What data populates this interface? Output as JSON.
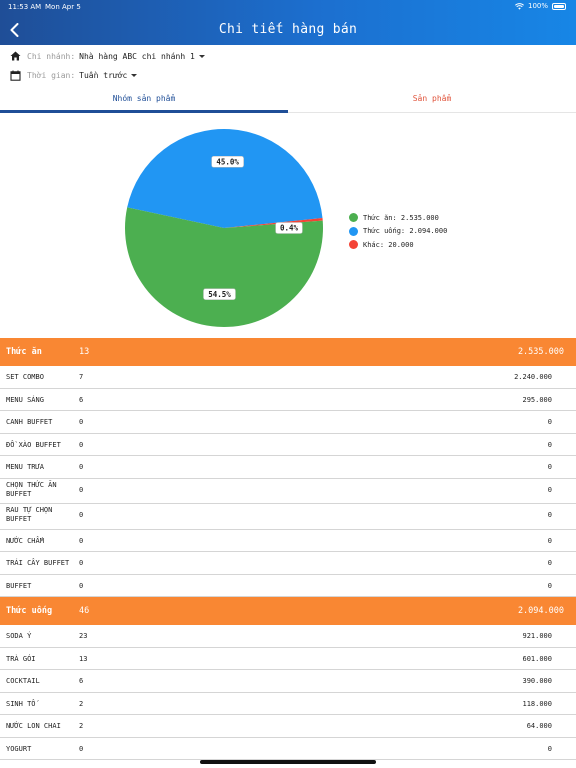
{
  "status_bar": {
    "time": "11:53 AM",
    "date": "Mon Apr 5",
    "battery": "100%"
  },
  "header": {
    "title": "Chi tiết hàng bán"
  },
  "filters": {
    "branch_label": "Chi nhánh:",
    "branch_value": "Nhà hàng ABC chi nhánh 1",
    "time_label": "Thời gian:",
    "time_value": "Tuần trước"
  },
  "tabs": [
    {
      "label": "Nhóm sản phẩm",
      "active": true
    },
    {
      "label": "Sản phẩm",
      "active": false
    }
  ],
  "chart_data": {
    "type": "pie",
    "slices": [
      {
        "label": "Thức ăn",
        "value": 2535000,
        "display": "2.535.000",
        "percent": "54.5%",
        "color": "#4caf50"
      },
      {
        "label": "Thức uống",
        "value": 2094000,
        "display": "2.094.000",
        "percent": "45.0%",
        "color": "#2196f3"
      },
      {
        "label": "Khác",
        "value": 20000,
        "display": "20.000",
        "percent": "0.4%",
        "color": "#f44336"
      }
    ],
    "legend_position": "right"
  },
  "legend": [
    {
      "text": "Thức ăn: 2.535.000",
      "color": "#4caf50"
    },
    {
      "text": "Thức uống: 2.094.000",
      "color": "#2196f3"
    },
    {
      "text": "Khác: 20.000",
      "color": "#f44336"
    }
  ],
  "groups": [
    {
      "name": "Thức ăn",
      "qty": "13",
      "amount": "2.535.000",
      "items": [
        {
          "name": "SET COMBO",
          "qty": "7",
          "amount": "2.240.000"
        },
        {
          "name": "MENU SÁNG",
          "qty": "6",
          "amount": "295.000"
        },
        {
          "name": "CANH BUFFET",
          "qty": "0",
          "amount": "0"
        },
        {
          "name": "ĐỒ XÀO BUFFET",
          "qty": "0",
          "amount": "0"
        },
        {
          "name": "MENU TRƯA",
          "qty": "0",
          "amount": "0"
        },
        {
          "name": "CHỌN THỨC ĂN BUFFET",
          "qty": "0",
          "amount": "0"
        },
        {
          "name": "RAU TỰ CHỌN BUFFET",
          "qty": "0",
          "amount": "0"
        },
        {
          "name": "NƯỚC CHẤM",
          "qty": "0",
          "amount": "0"
        },
        {
          "name": "TRÁI CÂY BUFFET",
          "qty": "0",
          "amount": "0"
        },
        {
          "name": "BUFFET",
          "qty": "0",
          "amount": "0"
        }
      ]
    },
    {
      "name": "Thức uống",
      "qty": "46",
      "amount": "2.094.000",
      "items": [
        {
          "name": "SODA Ý",
          "qty": "23",
          "amount": "921.000"
        },
        {
          "name": "TRÀ GÓI",
          "qty": "13",
          "amount": "601.000"
        },
        {
          "name": "COCKTAIL",
          "qty": "6",
          "amount": "390.000"
        },
        {
          "name": "SINH TỐ",
          "qty": "2",
          "amount": "118.000"
        },
        {
          "name": "NƯỚC LON CHAI",
          "qty": "2",
          "amount": "64.000"
        },
        {
          "name": "YOGURT",
          "qty": "0",
          "amount": "0"
        }
      ]
    }
  ],
  "icons": {
    "back": "chevron-left-icon",
    "branch": "home-icon",
    "time": "calendar-icon"
  },
  "colors": {
    "header": "#1c6fcf",
    "group_row": "#f98733",
    "active_tab": "#1f4e97",
    "inactive_tab": "#e0533b"
  }
}
